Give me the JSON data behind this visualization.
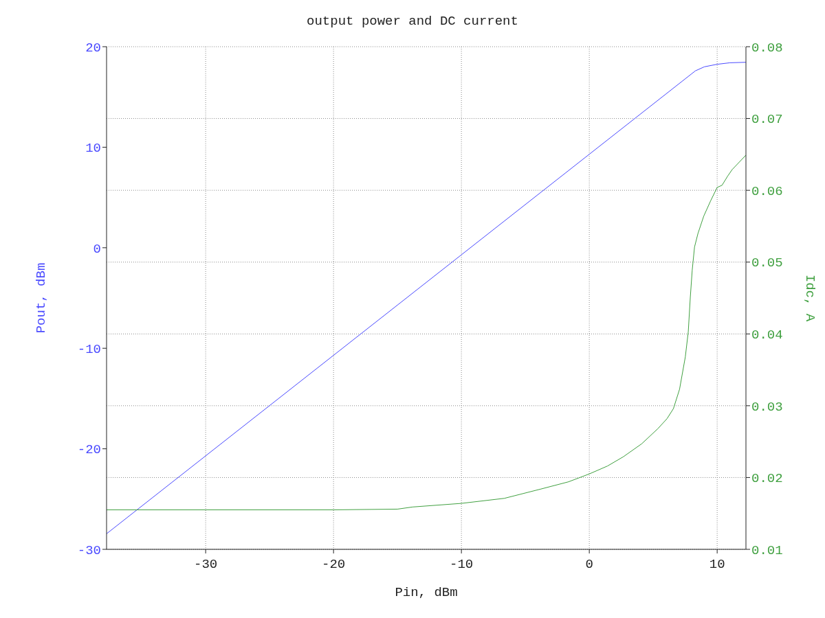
{
  "chart_data": {
    "type": "line",
    "title": "output power and DC current",
    "xlabel": "Pin, dBm",
    "ylabel": "Pout, dBm",
    "y2label": "Idc, A",
    "xlim": [
      -37.75,
      12.25
    ],
    "xticks": [
      -30,
      -20,
      -10,
      0,
      10
    ],
    "ylim": [
      -30,
      20
    ],
    "yticks": [
      -30,
      -20,
      -10,
      0,
      10,
      20
    ],
    "y2lim": [
      0.01,
      0.08
    ],
    "y2ticks": [
      0.01,
      0.02,
      0.03,
      0.04,
      0.05,
      0.06,
      0.07,
      0.08
    ],
    "grid": true,
    "legend": false,
    "marker": "none",
    "line_style": "solid",
    "series": [
      {
        "color": "#4a4aff",
        "x": [
          -37.75,
          -30,
          -20,
          -10,
          0,
          8,
          8.3,
          9,
          10,
          11,
          12.25
        ],
        "values": [
          -28.45,
          -20.7,
          -10.7,
          -0.7,
          9.3,
          17.3,
          17.6,
          18.0,
          18.25,
          18.4,
          18.45
        ]
      },
      {
        "color": "#40a040",
        "axis": "y2",
        "x": [
          -37.75,
          -30,
          -20,
          -15,
          -13.8,
          -10,
          -6.65,
          -3.78,
          -1.63,
          0,
          1.42,
          2.67,
          4.1,
          5.36,
          6.08,
          6.58,
          7.06,
          7.51,
          7.74,
          7.9,
          8.05,
          8.23,
          8.5,
          8.95,
          9.48,
          10.0,
          10.38,
          10.83,
          11.18,
          12.25
        ],
        "values": [
          0.0155,
          0.0155,
          0.0155,
          0.0156,
          0.0159,
          0.0164,
          0.0171,
          0.0184,
          0.0194,
          0.0205,
          0.0216,
          0.0229,
          0.0247,
          0.0268,
          0.0282,
          0.0296,
          0.0323,
          0.0368,
          0.0403,
          0.0451,
          0.0489,
          0.0521,
          0.054,
          0.0564,
          0.0585,
          0.0604,
          0.0607,
          0.062,
          0.0629,
          0.0649
        ]
      }
    ]
  }
}
